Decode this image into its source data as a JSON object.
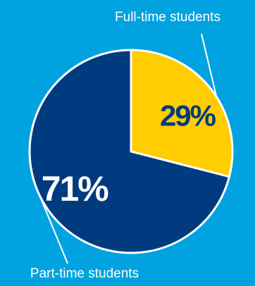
{
  "chart_data": {
    "type": "pie",
    "slices": [
      {
        "label": "Full-time students",
        "value": 29,
        "display": "29%",
        "color": "#FFCD00",
        "text_color": "#003B7F"
      },
      {
        "label": "Part-time students",
        "value": 71,
        "display": "71%",
        "color": "#003B7F",
        "text_color": "#FFFFFF"
      }
    ],
    "start_angle": "12 o'clock",
    "direction": "clockwise",
    "legend": "none (callout labels)"
  },
  "colors": {
    "background": "#00A3E0",
    "slice_border": "#FFFFFF",
    "leader_line": "#FFFFFF"
  }
}
